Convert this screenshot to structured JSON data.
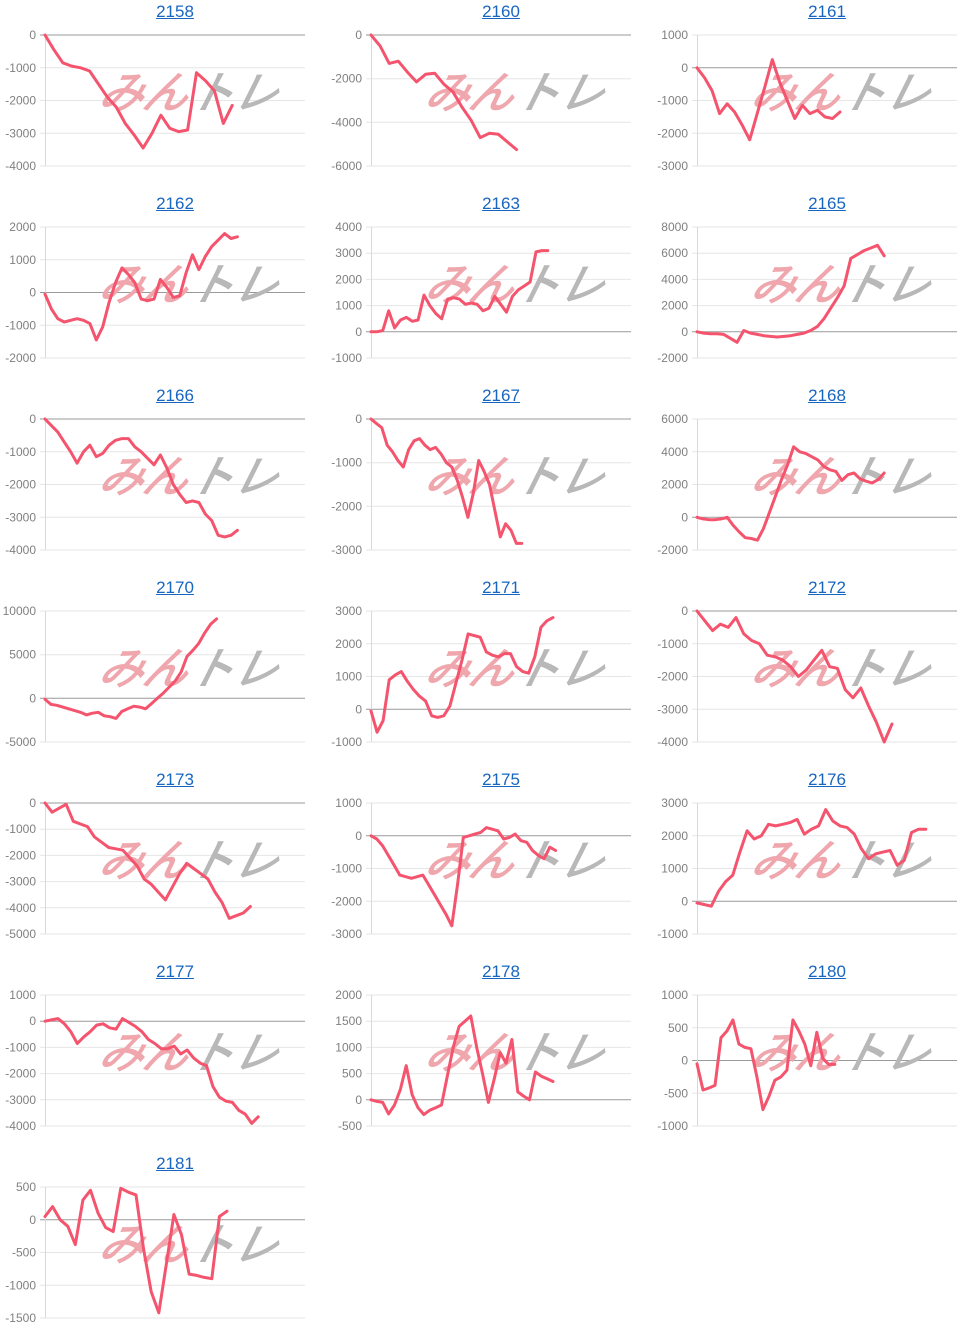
{
  "page": {
    "background": "#ffffff"
  },
  "style": {
    "line_color": "#f4546d",
    "grid_color": "#e6e6e6",
    "zero_line_color": "#9a9a9a",
    "axis_line_color": "#d9d9d9",
    "tick_color": "#808080",
    "title_color": "#1766c2"
  },
  "watermark": {
    "pink_text": "みん",
    "gray_text": "トレ",
    "pink_color": "#efa6ad",
    "gray_color": "#b8b8b8"
  },
  "chart_data": [
    {
      "title": "2158",
      "type": "line",
      "ylim": [
        -4000,
        0
      ],
      "ytick_step": 1000,
      "span": 0.72,
      "values": [
        0,
        -450,
        -850,
        -950,
        -1000,
        -1100,
        -1500,
        -1900,
        -2200,
        -2700,
        -3050,
        -3450,
        -3000,
        -2450,
        -2850,
        -2950,
        -2900,
        -1150,
        -1400,
        -1700,
        -2700,
        -2150
      ]
    },
    {
      "title": "2160",
      "type": "line",
      "ylim": [
        -6000,
        0
      ],
      "ytick_step": 2000,
      "span": 0.56,
      "values": [
        0,
        -500,
        -1300,
        -1200,
        -1700,
        -2150,
        -1800,
        -1750,
        -2250,
        -2600,
        -3300,
        -3900,
        -4700,
        -4500,
        -4550,
        -4900,
        -5250
      ]
    },
    {
      "title": "2161",
      "type": "line",
      "ylim": [
        -3000,
        1000
      ],
      "ytick_step": 1000,
      "span": 0.55,
      "values": [
        0,
        -300,
        -700,
        -1400,
        -1100,
        -1350,
        -1750,
        -2200,
        -1400,
        -600,
        250,
        -450,
        -1000,
        -1550,
        -1150,
        -1400,
        -1300,
        -1500,
        -1550,
        -1350
      ]
    },
    {
      "title": "2162",
      "type": "line",
      "ylim": [
        -2000,
        2000
      ],
      "ytick_step": 1000,
      "span": 0.74,
      "values": [
        -50,
        -500,
        -800,
        -900,
        -850,
        -800,
        -850,
        -950,
        -1450,
        -1050,
        -300,
        300,
        750,
        550,
        300,
        -200,
        -250,
        -200,
        400,
        150,
        -150,
        -100,
        600,
        1150,
        700,
        1100,
        1400,
        1600,
        1800,
        1650,
        1700
      ]
    },
    {
      "title": "2163",
      "type": "line",
      "ylim": [
        -1000,
        4000
      ],
      "ytick_step": 1000,
      "span": 0.68,
      "values": [
        0,
        0,
        50,
        800,
        150,
        450,
        550,
        400,
        450,
        1400,
        1000,
        700,
        500,
        1250,
        1300,
        1250,
        1050,
        1100,
        1050,
        800,
        900,
        1350,
        1050,
        750,
        1350,
        1600,
        1750,
        1900,
        3050,
        3100,
        3100
      ]
    },
    {
      "title": "2165",
      "type": "line",
      "ylim": [
        -2000,
        8000
      ],
      "ytick_step": 2000,
      "span": 0.72,
      "values": [
        0,
        -100,
        -150,
        -150,
        -200,
        -500,
        -800,
        100,
        -100,
        -200,
        -300,
        -350,
        -400,
        -350,
        -300,
        -200,
        -100,
        100,
        400,
        1000,
        1800,
        2600,
        3500,
        5600,
        5900,
        6200,
        6400,
        6600,
        5800
      ]
    },
    {
      "title": "2166",
      "type": "line",
      "ylim": [
        -4000,
        0
      ],
      "ytick_step": 1000,
      "span": 0.74,
      "values": [
        0,
        -200,
        -400,
        -700,
        -1000,
        -1350,
        -1000,
        -800,
        -1150,
        -1050,
        -800,
        -650,
        -600,
        -600,
        -850,
        -1000,
        -1200,
        -1400,
        -1100,
        -1500,
        -2000,
        -2300,
        -2550,
        -2500,
        -2550,
        -2900,
        -3100,
        -3550,
        -3600,
        -3550,
        -3400
      ]
    },
    {
      "title": "2167",
      "type": "line",
      "ylim": [
        -3000,
        0
      ],
      "ytick_step": 1000,
      "span": 0.58,
      "values": [
        0,
        -100,
        -200,
        -600,
        -750,
        -950,
        -1100,
        -700,
        -500,
        -450,
        -600,
        -700,
        -650,
        -800,
        -1000,
        -1100,
        -1400,
        -1800,
        -2250,
        -1700,
        -950,
        -1200,
        -1500,
        -2100,
        -2700,
        -2400,
        -2550,
        -2850,
        -2850
      ]
    },
    {
      "title": "2168",
      "type": "line",
      "ylim": [
        -2000,
        6000
      ],
      "ytick_step": 2000,
      "span": 0.72,
      "values": [
        0,
        -100,
        -150,
        -150,
        -100,
        0,
        -500,
        -900,
        -1250,
        -1300,
        -1400,
        -700,
        300,
        1300,
        2300,
        3200,
        4300,
        4000,
        3900,
        3700,
        3500,
        3100,
        2900,
        2800,
        2250,
        2600,
        2700,
        2350,
        2200,
        2100,
        2300,
        2700
      ]
    },
    {
      "title": "2170",
      "type": "line",
      "ylim": [
        -5000,
        10000
      ],
      "ytick_step": 5000,
      "span": 0.66,
      "values": [
        -100,
        -700,
        -800,
        -1000,
        -1200,
        -1400,
        -1600,
        -1900,
        -1700,
        -1600,
        -2000,
        -2100,
        -2300,
        -1500,
        -1200,
        -900,
        -1000,
        -1200,
        -600,
        0,
        600,
        1300,
        2000,
        3000,
        4800,
        5500,
        6300,
        7500,
        8500,
        9100
      ]
    },
    {
      "title": "2171",
      "type": "line",
      "ylim": [
        -1000,
        3000
      ],
      "ytick_step": 1000,
      "span": 0.7,
      "values": [
        -50,
        -700,
        -350,
        900,
        1050,
        1150,
        850,
        600,
        400,
        250,
        -200,
        -250,
        -200,
        100,
        800,
        1500,
        2300,
        2250,
        2200,
        1750,
        1650,
        1600,
        1700,
        1700,
        1300,
        1150,
        1100,
        1600,
        2500,
        2700,
        2800
      ]
    },
    {
      "title": "2172",
      "type": "line",
      "ylim": [
        -4000,
        0
      ],
      "ytick_step": 1000,
      "span": 0.75,
      "values": [
        0,
        -300,
        -600,
        -400,
        -500,
        -200,
        -700,
        -900,
        -1000,
        -1350,
        -1400,
        -1500,
        -1700,
        -2000,
        -1800,
        -1500,
        -1200,
        -1700,
        -1750,
        -2400,
        -2650,
        -2350,
        -2900,
        -3400,
        -4000,
        -3450
      ]
    },
    {
      "title": "2173",
      "type": "line",
      "ylim": [
        -5000,
        0
      ],
      "ytick_step": 1000,
      "span": 0.79,
      "values": [
        0,
        -350,
        -200,
        -50,
        -700,
        -800,
        -900,
        -1300,
        -1500,
        -1700,
        -1750,
        -1800,
        -2100,
        -2400,
        -2900,
        -3100,
        -3400,
        -3700,
        -3200,
        -2700,
        -2300,
        -2500,
        -2700,
        -2900,
        -3400,
        -3800,
        -4400,
        -4300,
        -4200,
        -3950
      ]
    },
    {
      "title": "2175",
      "type": "line",
      "ylim": [
        -3000,
        1000
      ],
      "ytick_step": 1000,
      "span": 0.71,
      "values": [
        0,
        -100,
        -300,
        -600,
        -900,
        -1200,
        -1250,
        -1300,
        -1250,
        -1200,
        -1500,
        -1800,
        -2100,
        -2400,
        -2750,
        -1500,
        -50,
        0,
        50,
        100,
        250,
        200,
        150,
        -100,
        -50,
        50,
        -150,
        -200,
        -450,
        -600,
        -700,
        -350,
        -450
      ]
    },
    {
      "title": "2176",
      "type": "line",
      "ylim": [
        -1000,
        3000
      ],
      "ytick_step": 1000,
      "span": 0.88,
      "values": [
        -50,
        -100,
        -150,
        300,
        600,
        800,
        1500,
        2150,
        1900,
        2000,
        2350,
        2300,
        2350,
        2400,
        2500,
        2050,
        2200,
        2300,
        2800,
        2450,
        2300,
        2250,
        2050,
        1600,
        1300,
        1450,
        1500,
        1550,
        1100,
        1250,
        2100,
        2200,
        2200
      ]
    },
    {
      "title": "2177",
      "type": "line",
      "ylim": [
        -4000,
        1000
      ],
      "ytick_step": 1000,
      "span": 0.82,
      "values": [
        0,
        50,
        100,
        -100,
        -400,
        -850,
        -600,
        -400,
        -150,
        -100,
        -250,
        -300,
        100,
        -50,
        -200,
        -400,
        -700,
        -850,
        -1050,
        -1050,
        -950,
        -1250,
        -1100,
        -1400,
        -1600,
        -1700,
        -2500,
        -2900,
        -3050,
        -3100,
        -3400,
        -3550,
        -3900,
        -3650
      ]
    },
    {
      "title": "2178",
      "type": "line",
      "ylim": [
        -500,
        2000
      ],
      "ytick_step": 500,
      "span": 0.7,
      "values": [
        0,
        -30,
        -50,
        -270,
        -100,
        200,
        650,
        100,
        -150,
        -280,
        -200,
        -150,
        -100,
        450,
        1000,
        1400,
        1500,
        1600,
        1000,
        500,
        -50,
        400,
        900,
        700,
        1150,
        150,
        70,
        0,
        530,
        450,
        400,
        350
      ]
    },
    {
      "title": "2180",
      "type": "line",
      "ylim": [
        -1000,
        1000
      ],
      "ytick_step": 500,
      "span": 0.53,
      "values": [
        -50,
        -450,
        -420,
        -380,
        350,
        450,
        620,
        250,
        200,
        180,
        -250,
        -750,
        -550,
        -300,
        -250,
        -150,
        620,
        450,
        250,
        -80,
        430,
        30,
        -60,
        -60
      ]
    },
    {
      "title": "2181",
      "type": "line",
      "ylim": [
        -1500,
        500
      ],
      "ytick_step": 500,
      "span": 0.7,
      "values": [
        50,
        200,
        0,
        -100,
        -380,
        300,
        450,
        100,
        -120,
        -180,
        480,
        420,
        380,
        -450,
        -1100,
        -1420,
        -680,
        80,
        -230,
        -830,
        -850,
        -880,
        -900,
        50,
        130
      ]
    }
  ]
}
